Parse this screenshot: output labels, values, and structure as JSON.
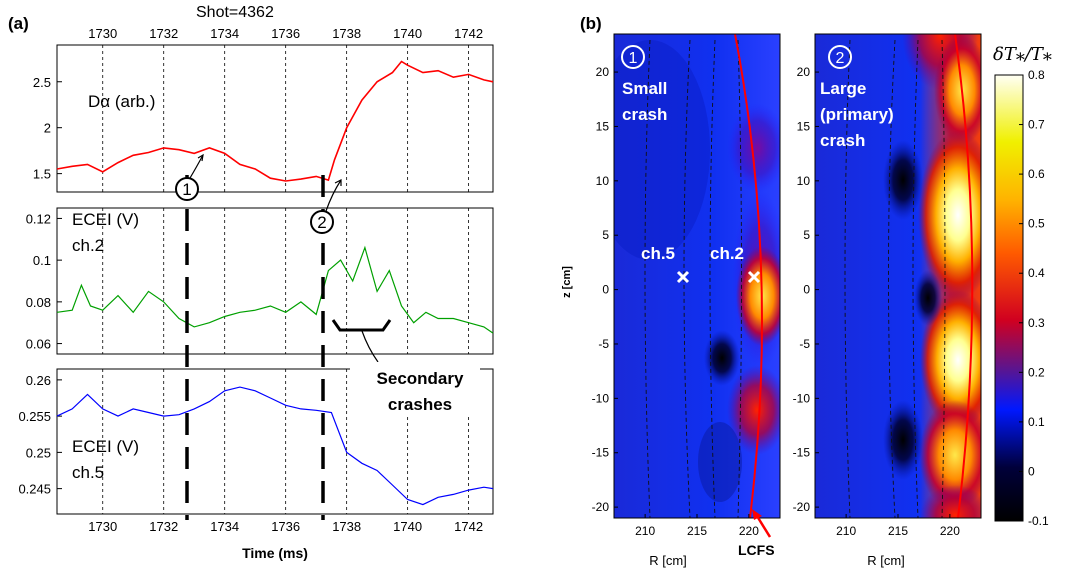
{
  "panel_a": {
    "panel_label": "(a)",
    "shot_label": "Shot=4362",
    "xlabel": "Time (ms)",
    "subplots": [
      {
        "label": "Dα (arb.)",
        "label2": ""
      },
      {
        "label": "ECEI (V)",
        "label2": "ch.2"
      },
      {
        "label": "ECEI (V)",
        "label2": "ch.5"
      }
    ],
    "markers": [
      "1",
      "2"
    ],
    "secondary_label_1": "Secondary",
    "secondary_label_2": "crashes"
  },
  "panel_b": {
    "panel_label": "(b)",
    "ylabel": "z [cm]",
    "xlabel": "R [cm]",
    "image1": {
      "number": "1",
      "text": [
        "Small",
        "crash"
      ]
    },
    "image2": {
      "number": "2",
      "text": [
        "Large",
        "(primary)",
        "crash"
      ]
    },
    "ch5_label": "ch.5",
    "ch2_label": "ch.2",
    "lcfs_label": "LCFS",
    "colorbar_label": "δT⁎/T⁎",
    "colorbar_ticks": [
      "0.8",
      "0.7",
      "0.6",
      "0.5",
      "0.4",
      "0.3",
      "0.2",
      "0.1",
      "0",
      "-0.1"
    ]
  },
  "colors": {
    "dalpha": "#ff0000",
    "ch2": "#00a000",
    "ch5": "#0000ff",
    "lcfs": "#ff0000"
  },
  "chart_data": [
    {
      "type": "line",
      "title": "",
      "xlabel": "",
      "ylabel": "",
      "xlim": [
        1728.5,
        1742.8
      ],
      "ylim": [
        1.3,
        2.9
      ],
      "xticks": [
        1730,
        1732,
        1734,
        1736,
        1738,
        1740,
        1742
      ],
      "yticks": [
        1.5,
        2,
        2.5
      ],
      "grid": "vertical dashed",
      "series": [
        {
          "name": "Dα (arb.)",
          "color": "#ff0000",
          "x": [
            1728.5,
            1729.0,
            1729.5,
            1730.0,
            1730.5,
            1731.0,
            1731.5,
            1732.0,
            1732.5,
            1733.0,
            1733.5,
            1734.0,
            1734.5,
            1735.0,
            1735.5,
            1736.0,
            1736.5,
            1737.0,
            1737.4,
            1737.6,
            1738.0,
            1738.5,
            1739.0,
            1739.5,
            1739.8,
            1740.0,
            1740.5,
            1741.0,
            1741.5,
            1742.0,
            1742.5,
            1742.8
          ],
          "y": [
            1.55,
            1.58,
            1.6,
            1.52,
            1.62,
            1.7,
            1.73,
            1.78,
            1.76,
            1.72,
            1.78,
            1.72,
            1.6,
            1.55,
            1.45,
            1.42,
            1.44,
            1.47,
            1.43,
            1.65,
            2.0,
            2.3,
            2.5,
            2.6,
            2.72,
            2.68,
            2.6,
            2.62,
            2.55,
            2.58,
            2.52,
            2.5
          ]
        }
      ]
    },
    {
      "type": "line",
      "title": "",
      "xlabel": "",
      "ylabel": "",
      "xlim": [
        1728.5,
        1742.8
      ],
      "ylim": [
        0.055,
        0.125
      ],
      "xticks": [
        1730,
        1732,
        1734,
        1736,
        1738,
        1740,
        1742
      ],
      "yticks": [
        0.06,
        0.08,
        0.1,
        0.12
      ],
      "grid": "vertical dashed",
      "series": [
        {
          "name": "ch.2",
          "color": "#00a000",
          "x": [
            1728.5,
            1729.0,
            1729.3,
            1729.6,
            1730.0,
            1730.5,
            1731.0,
            1731.5,
            1732.0,
            1732.5,
            1733.0,
            1733.5,
            1734.0,
            1734.5,
            1735.0,
            1735.5,
            1736.0,
            1736.5,
            1737.0,
            1737.4,
            1737.8,
            1738.2,
            1738.6,
            1739.0,
            1739.4,
            1739.8,
            1740.2,
            1740.6,
            1741.0,
            1741.5,
            1742.0,
            1742.5,
            1742.8
          ],
          "y": [
            0.075,
            0.076,
            0.088,
            0.078,
            0.076,
            0.083,
            0.075,
            0.085,
            0.08,
            0.072,
            0.068,
            0.07,
            0.073,
            0.075,
            0.076,
            0.078,
            0.075,
            0.08,
            0.074,
            0.095,
            0.1,
            0.09,
            0.106,
            0.085,
            0.095,
            0.078,
            0.07,
            0.075,
            0.072,
            0.072,
            0.07,
            0.068,
            0.065
          ]
        }
      ]
    },
    {
      "type": "line",
      "title": "",
      "xlabel": "Time (ms)",
      "ylabel": "",
      "xlim": [
        1728.5,
        1742.8
      ],
      "ylim": [
        0.2415,
        0.2615
      ],
      "xticks": [
        1730,
        1732,
        1734,
        1736,
        1738,
        1740,
        1742
      ],
      "yticks": [
        0.245,
        0.25,
        0.255,
        0.26
      ],
      "grid": "vertical dashed",
      "series": [
        {
          "name": "ch.5",
          "color": "#0000ff",
          "x": [
            1728.5,
            1729.0,
            1729.5,
            1730.0,
            1730.5,
            1731.0,
            1731.5,
            1732.0,
            1732.5,
            1733.0,
            1733.5,
            1734.0,
            1734.5,
            1735.0,
            1735.5,
            1736.0,
            1736.5,
            1737.0,
            1737.5,
            1738.0,
            1738.5,
            1739.0,
            1739.5,
            1740.0,
            1740.5,
            1741.0,
            1741.5,
            1742.0,
            1742.5,
            1742.8
          ],
          "y": [
            0.255,
            0.256,
            0.258,
            0.256,
            0.255,
            0.256,
            0.2555,
            0.255,
            0.2552,
            0.256,
            0.257,
            0.2585,
            0.259,
            0.2585,
            0.2575,
            0.2565,
            0.256,
            0.2558,
            0.2555,
            0.25,
            0.2485,
            0.2475,
            0.2455,
            0.2435,
            0.2428,
            0.2438,
            0.2442,
            0.2448,
            0.2452,
            0.245
          ]
        }
      ]
    },
    {
      "type": "heatmap",
      "title": "",
      "xlabel": "R [cm]",
      "ylabel": "z [cm]",
      "xlim": [
        207,
        223
      ],
      "ylim": [
        -21,
        23.5
      ],
      "xticks": [
        210,
        215,
        220
      ],
      "yticks": [
        -20,
        -15,
        -10,
        -5,
        0,
        5,
        10,
        15,
        20
      ],
      "annotations": [
        "Small crash",
        "ch.5",
        "ch.2",
        "LCFS"
      ],
      "hotspots": [
        {
          "R": 221,
          "z": 1.5,
          "value": 0.5
        },
        {
          "R": 221,
          "z": -11,
          "value": 0.3
        },
        {
          "R": 219.5,
          "z": 12,
          "value": 0.15
        },
        {
          "R": 217.5,
          "z": -6,
          "value": -0.1
        }
      ]
    },
    {
      "type": "heatmap",
      "title": "",
      "xlabel": "R [cm]",
      "ylabel": "",
      "xlim": [
        207,
        223
      ],
      "ylim": [
        -21,
        23.5
      ],
      "xticks": [
        210,
        215,
        220
      ],
      "yticks": [
        -20,
        -15,
        -10,
        -5,
        0,
        5,
        10,
        15,
        20
      ],
      "annotations": [
        "Large (primary) crash"
      ],
      "hotspots": [
        {
          "R": 221,
          "z": 7,
          "value": 0.8
        },
        {
          "R": 221,
          "z": -5,
          "value": 0.8
        },
        {
          "R": 221,
          "z": 17,
          "value": 0.45
        },
        {
          "R": 221,
          "z": -13,
          "value": 0.4
        },
        {
          "R": 215.5,
          "z": 0,
          "value": -0.1
        },
        {
          "R": 215.5,
          "z": 12,
          "value": -0.05
        },
        {
          "R": 215.5,
          "z": -14,
          "value": -0.05
        }
      ],
      "colorbar": {
        "min": -0.1,
        "max": 0.8,
        "ticks": [
          -0.1,
          0,
          0.1,
          0.2,
          0.3,
          0.4,
          0.5,
          0.6,
          0.7,
          0.8
        ]
      }
    }
  ]
}
